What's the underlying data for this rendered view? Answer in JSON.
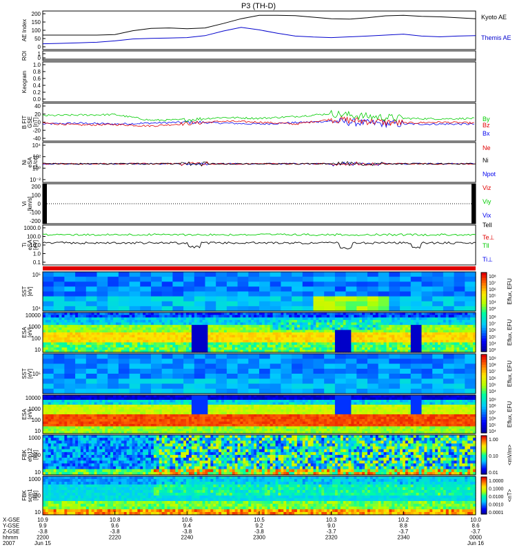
{
  "title": "P3 (TH-D)",
  "colors": {
    "kyoto": "#000000",
    "themis": "#0000cc",
    "red": "#e00000",
    "green": "#00cc00",
    "blue": "#0000ee",
    "black": "#000000"
  },
  "chart_data": [
    {
      "type": "line",
      "panel": "ae",
      "ylabel": "AE Index",
      "ylim": [
        0,
        200
      ],
      "yticks": [
        "200",
        "150",
        "100",
        "50",
        "0"
      ],
      "x": [
        0,
        5,
        10,
        15,
        20,
        25,
        30,
        35,
        40,
        45,
        50,
        55,
        60,
        65,
        70,
        75,
        80,
        85,
        90,
        95,
        100,
        105,
        110,
        115,
        120
      ],
      "series": [
        {
          "name": "Kyoto AE",
          "color": "#000000",
          "values": [
            75,
            75,
            75,
            75,
            78,
            98,
            110,
            112,
            108,
            112,
            135,
            160,
            178,
            178,
            176,
            168,
            160,
            158,
            165,
            175,
            178,
            172,
            170,
            165,
            160
          ]
        },
        {
          "name": "Themis AE",
          "color": "#0000cc",
          "values": [
            30,
            32,
            35,
            38,
            45,
            55,
            58,
            60,
            62,
            72,
            96,
            115,
            102,
            85,
            70,
            65,
            62,
            66,
            70,
            75,
            80,
            70,
            66,
            70,
            72
          ]
        }
      ]
    },
    {
      "type": "line",
      "panel": "roi",
      "ylabel": "ROI",
      "yticks": [
        "1",
        "0"
      ]
    },
    {
      "type": "line",
      "panel": "keogram",
      "ylabel": "Keogram",
      "ylim": [
        0,
        1
      ],
      "yticks": [
        "1.0",
        "0.8",
        "0.6",
        "0.4",
        "0.2",
        "0.0"
      ]
    },
    {
      "type": "line",
      "panel": "bfit",
      "ylabel": "B FIT",
      "yunit1": "GSE",
      "yunit2": "[nT]",
      "ylim": [
        -40,
        40
      ],
      "yticks": [
        "40",
        "20",
        "0",
        "-20",
        "-40"
      ],
      "x": [
        0,
        10,
        20,
        30,
        40,
        50,
        60,
        70,
        80,
        90,
        100,
        110,
        120
      ],
      "series": [
        {
          "name": "Bz",
          "color": "#e00000",
          "values": [
            -2,
            -6,
            -5,
            -8,
            -3,
            2,
            0,
            -4,
            6,
            2,
            -2,
            0,
            -2
          ]
        },
        {
          "name": "By",
          "color": "#00cc00",
          "values": [
            14,
            15,
            16,
            4,
            5,
            10,
            8,
            12,
            18,
            12,
            8,
            7,
            8
          ]
        },
        {
          "name": "Bx",
          "color": "#0000ee",
          "values": [
            -4,
            -2,
            -4,
            -2,
            0,
            -2,
            -4,
            -1,
            2,
            -2,
            -4,
            -4,
            -4
          ]
        }
      ]
    },
    {
      "type": "line",
      "panel": "density",
      "ylabel": "Ni",
      "yunit1": "eSA",
      "yunit2": "[1/cc]",
      "yticks": [
        "10⁴",
        "10²",
        "10⁰",
        "10⁻²"
      ],
      "series": [
        {
          "name": "Ne",
          "color": "#e00000"
        },
        {
          "name": "Ni",
          "color": "#000000"
        },
        {
          "name": "Npot",
          "color": "#0000ee"
        }
      ]
    },
    {
      "type": "line",
      "panel": "velocity",
      "ylabel": "Vi",
      "yunit1": "[km/s]",
      "ylim": [
        -300,
        300
      ],
      "yticks": [
        "200",
        "100",
        "0",
        "-100",
        "-200"
      ],
      "series": [
        {
          "name": "Viz",
          "color": "#e00000"
        },
        {
          "name": "Viy",
          "color": "#00cc00"
        },
        {
          "name": "Vix",
          "color": "#0000ee"
        }
      ]
    },
    {
      "type": "line",
      "panel": "temperature",
      "ylabel": "Ti",
      "yunit1": "eSA",
      "yunit2": "[eV]",
      "yticks": [
        "1000.0",
        "100.0",
        "10.0",
        "1.0",
        "0.1"
      ],
      "series": [
        {
          "name": "Tell",
          "color": "#000000"
        },
        {
          "name": "Te⊥",
          "color": "#e00000"
        },
        {
          "name": "Tll",
          "color": "#00cc00"
        },
        {
          "name": "Ti⊥",
          "color": "#0000ee"
        }
      ]
    },
    {
      "type": "heatmap",
      "panel": "sst-ion",
      "ylabel": "SST",
      "yunit1": "[eV]",
      "yticks": [
        "10⁵",
        "10⁴"
      ],
      "colorbar_label": "Eflux, EFU",
      "colorbar_ticks": [
        "10⁸",
        "10⁷",
        "10⁶",
        "10⁵",
        "10⁴",
        "10³"
      ]
    },
    {
      "type": "heatmap",
      "panel": "esa-ion",
      "ylabel": "ESA",
      "yunit1": "[eV]",
      "yticks": [
        "10000",
        "1000",
        "100",
        "10"
      ],
      "colorbar_label": "Eflux, EFU",
      "colorbar_ticks": [
        "10⁸",
        "10⁷",
        "10⁶",
        "10⁵",
        "10⁴",
        "10³"
      ]
    },
    {
      "type": "heatmap",
      "panel": "sst-elec",
      "ylabel": "SST",
      "yunit1": "[eV]",
      "yticks": [
        "10⁵"
      ],
      "colorbar_label": "Eflux, EFU",
      "colorbar_ticks": [
        "10⁹",
        "10⁸",
        "10⁷",
        "10⁶",
        "10⁵",
        "10⁴"
      ]
    },
    {
      "type": "heatmap",
      "panel": "esa-elec",
      "ylabel": "ESA",
      "yunit1": "[eV]",
      "yticks": [
        "10000",
        "1000",
        "100",
        "10"
      ],
      "colorbar_label": "Eflux, EFU",
      "colorbar_ticks": [
        "10⁹",
        "10⁸",
        "10⁷",
        "10⁶",
        "10⁵",
        "10⁴"
      ]
    },
    {
      "type": "heatmap",
      "panel": "fbk-e",
      "ylabel": "FBK",
      "yunit1": "efp12",
      "yunit2": "[Hz]",
      "yticks": [
        "1000",
        "100",
        "10"
      ],
      "colorbar_label": "<mV/m>",
      "colorbar_ticks": [
        "1.00",
        "0.10",
        "0.01"
      ]
    },
    {
      "type": "heatmap",
      "panel": "fbk-b",
      "ylabel": "FBK",
      "yunit1": "scm1",
      "yunit2": "[Hz]",
      "yticks": [
        "1000",
        "100",
        "10"
      ],
      "colorbar_label": "<nT>",
      "colorbar_ticks": [
        "1.0000",
        "0.1000",
        "0.0100",
        "0.0010",
        "0.0001"
      ]
    }
  ],
  "xaxis": {
    "row_labels": [
      "X-GSE",
      "Y-GSE",
      "Z-GSE",
      "hhmm",
      "2007"
    ],
    "ticks": [
      {
        "x": "10.9",
        "y": "9.9",
        "z": "-3.8",
        "time": "2200",
        "date": "Jun 15"
      },
      {
        "x": "10.8",
        "y": "9.6",
        "z": "-3.8",
        "time": "2220",
        "date": ""
      },
      {
        "x": "10.6",
        "y": "9.4",
        "z": "-3.8",
        "time": "2240",
        "date": ""
      },
      {
        "x": "10.5",
        "y": "9.2",
        "z": "-3.8",
        "time": "2300",
        "date": ""
      },
      {
        "x": "10.3",
        "y": "9.0",
        "z": "-3.7",
        "time": "2320",
        "date": ""
      },
      {
        "x": "10.2",
        "y": "8.8",
        "z": "-3.7",
        "time": "2340",
        "date": ""
      },
      {
        "x": "10.0",
        "y": "8.6",
        "z": "-3.7",
        "time": "0000",
        "date": "Jun 16"
      }
    ]
  }
}
